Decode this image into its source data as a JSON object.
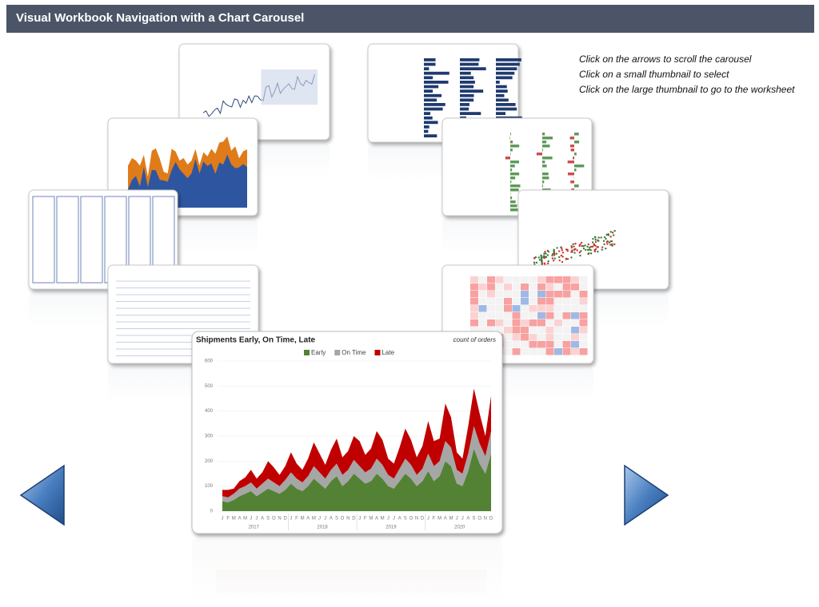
{
  "header": {
    "title": "Visual Workbook Navigation with a Chart Carousel"
  },
  "instructions": [
    "Click on the arrows to scroll the carousel",
    "Click on a small thumbnail to select",
    "Click on the large thumbnail to go to the worksheet"
  ],
  "chart_data": {
    "type": "area",
    "stacked": true,
    "title": "Shipments Early, On Time, Late",
    "subtitle": "count of orders",
    "categories": [
      "J",
      "F",
      "M",
      "A",
      "M",
      "J",
      "J",
      "A",
      "S",
      "O",
      "N",
      "D",
      "J",
      "F",
      "M",
      "A",
      "M",
      "J",
      "J",
      "A",
      "S",
      "O",
      "N",
      "D",
      "J",
      "F",
      "M",
      "A",
      "M",
      "J",
      "J",
      "A",
      "S",
      "O",
      "N",
      "D",
      "J",
      "F",
      "M",
      "A",
      "M",
      "J",
      "J",
      "A",
      "S",
      "O",
      "N",
      "D"
    ],
    "year_labels": [
      "2017",
      "2018",
      "2019",
      "2020"
    ],
    "series": [
      {
        "name": "Early",
        "color": "#548235",
        "values": [
          40,
          35,
          45,
          60,
          70,
          80,
          60,
          75,
          90,
          80,
          70,
          85,
          110,
          90,
          80,
          100,
          130,
          110,
          90,
          120,
          140,
          100,
          120,
          150,
          130,
          110,
          120,
          150,
          130,
          100,
          90,
          120,
          150,
          130,
          100,
          120,
          160,
          120,
          140,
          200,
          180,
          110,
          100,
          160,
          250,
          190,
          150,
          230
        ]
      },
      {
        "name": "On Time",
        "color": "#a6a6a6",
        "values": [
          20,
          20,
          25,
          30,
          30,
          35,
          30,
          35,
          40,
          35,
          30,
          40,
          45,
          40,
          35,
          40,
          50,
          45,
          40,
          45,
          50,
          45,
          45,
          55,
          50,
          45,
          50,
          60,
          55,
          45,
          40,
          50,
          60,
          55,
          45,
          50,
          70,
          60,
          60,
          80,
          75,
          55,
          50,
          70,
          90,
          80,
          70,
          90
        ]
      },
      {
        "name": "Late",
        "color": "#c00000",
        "values": [
          25,
          30,
          20,
          30,
          35,
          50,
          40,
          45,
          70,
          60,
          45,
          55,
          80,
          60,
          50,
          70,
          95,
          75,
          55,
          80,
          100,
          70,
          75,
          95,
          100,
          70,
          80,
          110,
          100,
          65,
          60,
          85,
          120,
          100,
          70,
          90,
          130,
          100,
          90,
          150,
          120,
          70,
          60,
          110,
          150,
          120,
          80,
          140
        ]
      }
    ],
    "ylim": [
      0,
      600
    ],
    "yticks": [
      0,
      100,
      200,
      300,
      400,
      500,
      600
    ],
    "legend": "top"
  }
}
